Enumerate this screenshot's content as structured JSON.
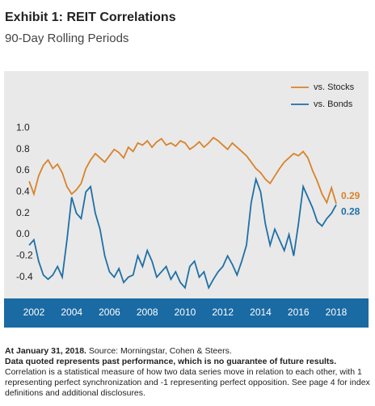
{
  "chart_data": {
    "type": "line",
    "title": "Exhibit 1: REIT Correlations",
    "subtitle": "90-Day Rolling Periods",
    "x": [
      2001.75,
      2002,
      2002.25,
      2002.5,
      2002.75,
      2003,
      2003.25,
      2003.5,
      2003.75,
      2004,
      2004.25,
      2004.5,
      2004.75,
      2005,
      2005.25,
      2005.5,
      2005.75,
      2006,
      2006.25,
      2006.5,
      2006.75,
      2007,
      2007.25,
      2007.5,
      2007.75,
      2008,
      2008.25,
      2008.5,
      2008.75,
      2009,
      2009.25,
      2009.5,
      2009.75,
      2010,
      2010.25,
      2010.5,
      2010.75,
      2011,
      2011.25,
      2011.5,
      2011.75,
      2012,
      2012.25,
      2012.5,
      2012.75,
      2013,
      2013.25,
      2013.5,
      2013.75,
      2014,
      2014.25,
      2014.5,
      2014.75,
      2015,
      2015.25,
      2015.5,
      2015.75,
      2016,
      2016.25,
      2016.5,
      2016.75,
      2017,
      2017.25,
      2017.5,
      2017.75,
      2018
    ],
    "series": [
      {
        "name": "vs. Stocks",
        "color": "#d9822b",
        "values": [
          0.5,
          0.38,
          0.55,
          0.65,
          0.7,
          0.62,
          0.66,
          0.58,
          0.45,
          0.38,
          0.42,
          0.48,
          0.62,
          0.7,
          0.76,
          0.72,
          0.68,
          0.74,
          0.8,
          0.77,
          0.72,
          0.82,
          0.78,
          0.86,
          0.84,
          0.88,
          0.82,
          0.87,
          0.9,
          0.84,
          0.86,
          0.83,
          0.88,
          0.86,
          0.8,
          0.83,
          0.87,
          0.82,
          0.86,
          0.91,
          0.88,
          0.84,
          0.8,
          0.86,
          0.82,
          0.78,
          0.74,
          0.68,
          0.62,
          0.58,
          0.52,
          0.48,
          0.55,
          0.62,
          0.68,
          0.72,
          0.76,
          0.74,
          0.78,
          0.72,
          0.6,
          0.5,
          0.38,
          0.3,
          0.44,
          0.29
        ]
      },
      {
        "name": "vs. Bonds",
        "color": "#1f6fa6",
        "values": [
          -0.1,
          -0.05,
          -0.25,
          -0.38,
          -0.42,
          -0.38,
          -0.3,
          -0.4,
          -0.05,
          0.35,
          0.2,
          0.15,
          0.4,
          0.45,
          0.2,
          0.05,
          -0.2,
          -0.35,
          -0.4,
          -0.32,
          -0.45,
          -0.4,
          -0.38,
          -0.2,
          -0.3,
          -0.15,
          -0.25,
          -0.4,
          -0.35,
          -0.3,
          -0.42,
          -0.35,
          -0.45,
          -0.5,
          -0.3,
          -0.25,
          -0.4,
          -0.35,
          -0.5,
          -0.42,
          -0.35,
          -0.3,
          -0.2,
          -0.28,
          -0.38,
          -0.25,
          -0.1,
          0.3,
          0.52,
          0.4,
          0.1,
          -0.1,
          0.05,
          -0.05,
          -0.15,
          0,
          -0.2,
          0.1,
          0.45,
          0.35,
          0.25,
          0.12,
          0.08,
          0.15,
          0.2,
          0.28
        ]
      }
    ],
    "xlim": [
      2000.42,
      2019.71
    ],
    "xticks": [
      2002,
      2004,
      2006,
      2008,
      2010,
      2012,
      2014,
      2016,
      2018
    ],
    "ylim": [
      -0.6,
      1.2
    ],
    "yticks": [
      {
        "value": 1,
        "label": "1.0"
      },
      0.8,
      0.6,
      0.4,
      0.2,
      {
        "value": 0,
        "label": "0.0"
      },
      -0.2,
      -0.4
    ],
    "grid": false,
    "legend": "top-right",
    "footnotes": [
      {
        "bold": "At January 31, 2018.",
        "text": "Source: Morningstar, Cohen & Steers."
      },
      {
        "bold": "Data quoted represents past performance, which is no guarantee of future results."
      },
      {
        "text": "Correlation is a statistical measure of how two data series move in relation to each other, with 1 representing perfect synchronization and -1 representing perfect opposition. See page 4 for index definitions and additional disclosures."
      }
    ]
  }
}
